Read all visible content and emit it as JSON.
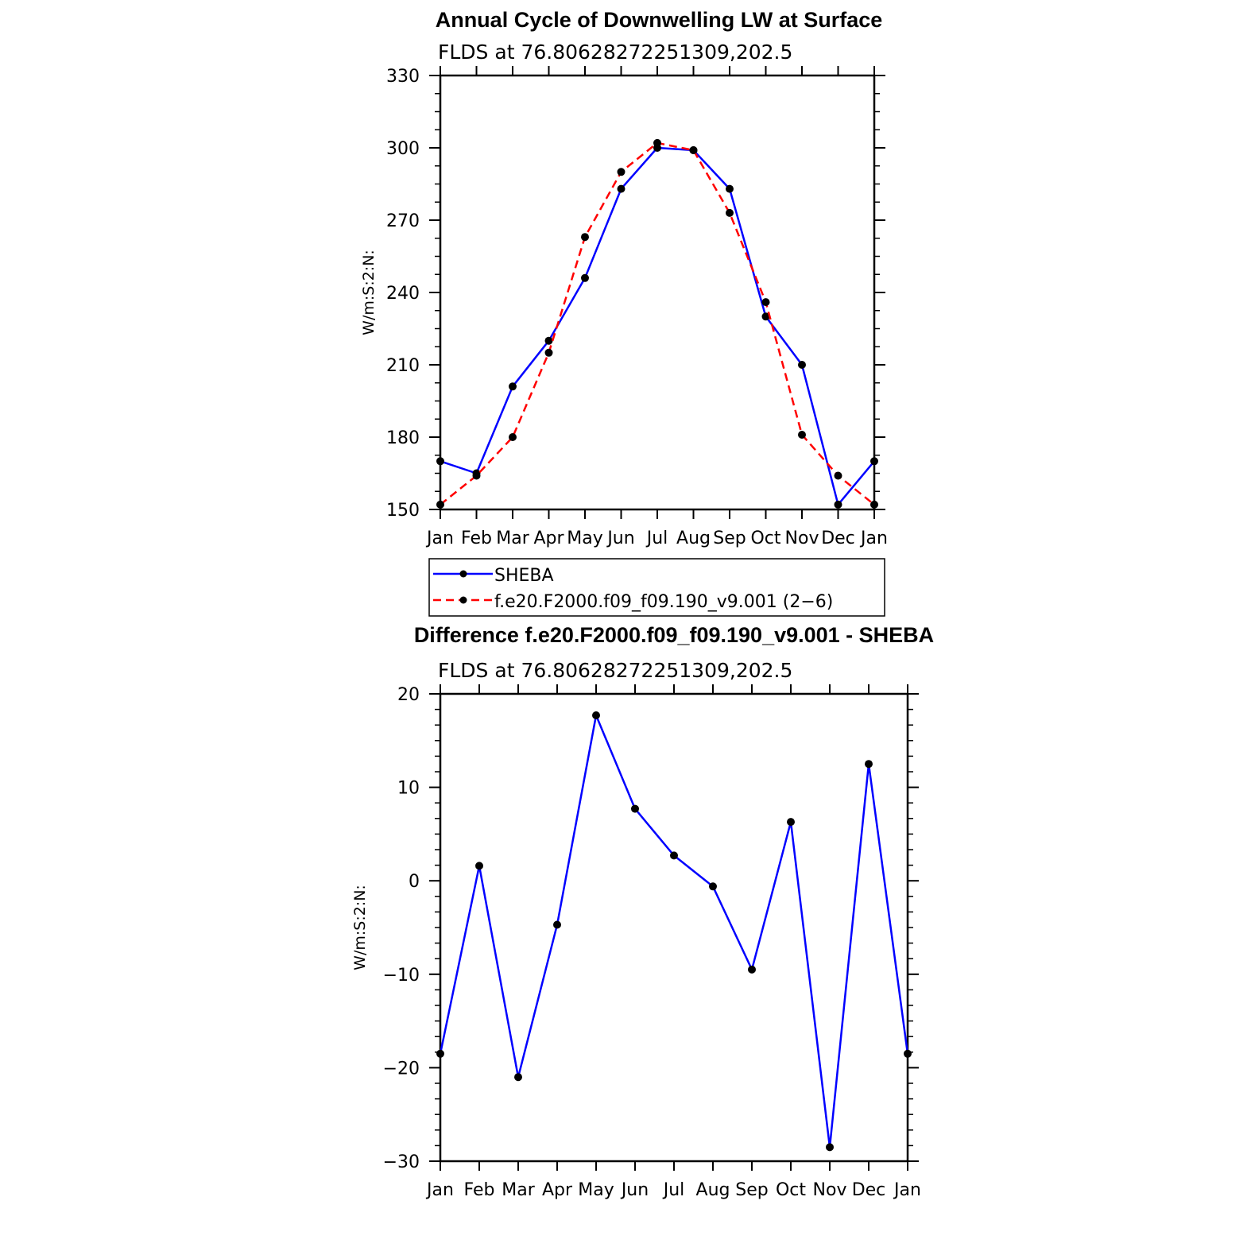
{
  "chart_data": [
    {
      "type": "line",
      "title": "Annual Cycle of Downwelling LW at Surface",
      "subtitle": "FLDS at 76.80628272251309,202.5",
      "xlabel": "",
      "ylabel": "W/m:S:2:N:",
      "categories": [
        "Jan",
        "Feb",
        "Mar",
        "Apr",
        "May",
        "Jun",
        "Jul",
        "Aug",
        "Sep",
        "Oct",
        "Nov",
        "Dec",
        "Jan"
      ],
      "ylim": [
        150,
        330
      ],
      "yticks": [
        150,
        180,
        210,
        240,
        270,
        300,
        330
      ],
      "grid": false,
      "legend_position": "below",
      "series": [
        {
          "name": "SHEBA",
          "color": "#0000ff",
          "dash": "solid",
          "values": [
            170,
            165,
            201,
            220,
            246,
            283,
            300,
            299,
            283,
            230,
            210,
            152,
            170
          ]
        },
        {
          "name": "f.e20.F2000.f09_f09.190_v9.001 (2−6)",
          "color": "#ff0000",
          "dash": "dashed",
          "values": [
            152,
            164,
            180,
            215,
            263,
            290,
            302,
            299,
            273,
            236,
            181,
            164,
            152
          ]
        }
      ]
    },
    {
      "type": "line",
      "title": "Difference f.e20.F2000.f09_f09.190_v9.001 - SHEBA",
      "subtitle": "FLDS at 76.80628272251309,202.5",
      "xlabel": "",
      "ylabel": "W/m:S:2:N:",
      "categories": [
        "Jan",
        "Feb",
        "Mar",
        "Apr",
        "May",
        "Jun",
        "Jul",
        "Aug",
        "Sep",
        "Oct",
        "Nov",
        "Dec",
        "Jan"
      ],
      "ylim": [
        -30,
        20
      ],
      "yticks": [
        -30,
        -20,
        -10,
        0,
        10,
        20
      ],
      "ytick_labels": [
        "−30",
        "−20",
        "−10",
        "0",
        "10",
        "20"
      ],
      "grid": false,
      "series": [
        {
          "name": "",
          "color": "#0000ff",
          "dash": "solid",
          "values": [
            -18.5,
            1.6,
            -21,
            -4.7,
            17.7,
            7.7,
            2.7,
            -0.6,
            -9.5,
            6.3,
            -28.5,
            12.5,
            -18.5
          ]
        }
      ]
    }
  ]
}
